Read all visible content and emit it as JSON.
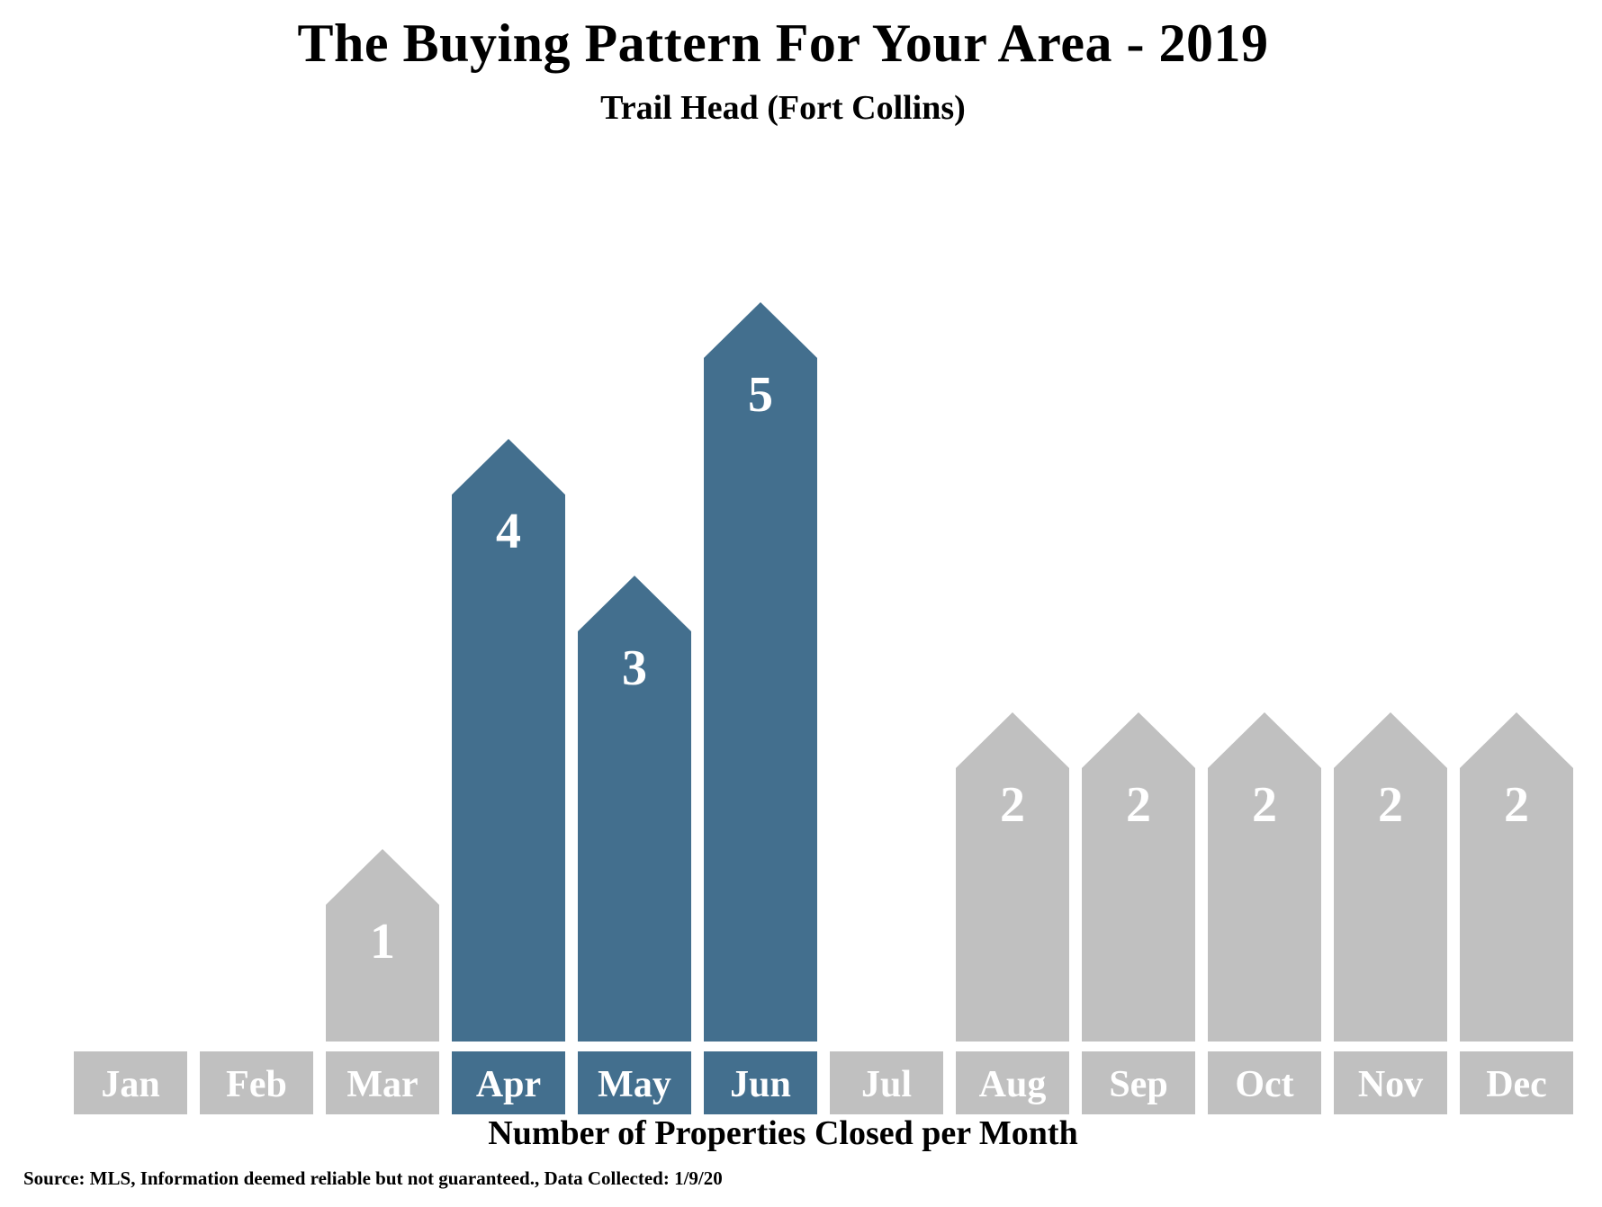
{
  "chart_data": {
    "type": "bar",
    "title": "The Buying Pattern For Your Area - 2019",
    "subtitle": "Trail Head (Fort Collins)",
    "xlabel": "Number of Properties Closed per Month",
    "ylabel": "",
    "categories": [
      "Jan",
      "Feb",
      "Mar",
      "Apr",
      "May",
      "Jun",
      "Jul",
      "Aug",
      "Sep",
      "Oct",
      "Nov",
      "Dec"
    ],
    "values": [
      0,
      0,
      1,
      4,
      3,
      5,
      0,
      2,
      2,
      2,
      2,
      2
    ],
    "highlighted": [
      "Apr",
      "May",
      "Jun"
    ],
    "ylim": [
      0,
      5
    ],
    "grid": false,
    "colors": {
      "highlight": "#436f8e",
      "default": "#c0c0c0"
    }
  },
  "source": "Source: MLS, Information deemed reliable but not guaranteed., Data Collected: 1/9/20"
}
